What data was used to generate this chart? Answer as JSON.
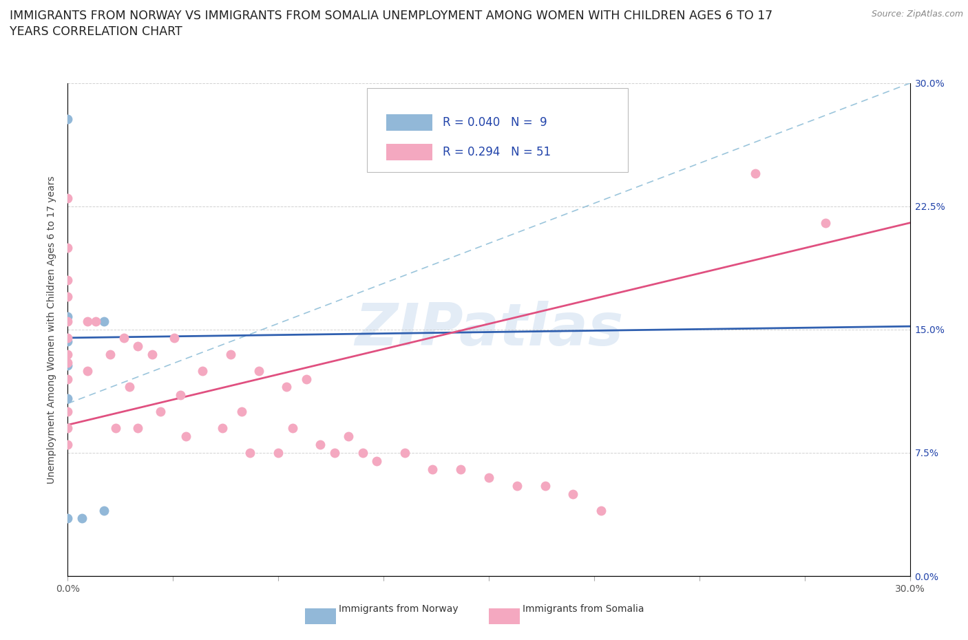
{
  "title_line1": "IMMIGRANTS FROM NORWAY VS IMMIGRANTS FROM SOMALIA UNEMPLOYMENT AMONG WOMEN WITH CHILDREN AGES 6 TO 17",
  "title_line2": "YEARS CORRELATION CHART",
  "source": "Source: ZipAtlas.com",
  "ylabel": "Unemployment Among Women with Children Ages 6 to 17 years",
  "label_norway": "Immigrants from Norway",
  "label_somalia": "Immigrants from Somalia",
  "xlim": [
    0.0,
    0.3
  ],
  "ylim": [
    0.0,
    0.3
  ],
  "yticks": [
    0.0,
    0.075,
    0.15,
    0.225,
    0.3
  ],
  "xticks": [
    0.0,
    0.0375,
    0.075,
    0.1125,
    0.15,
    0.1875,
    0.225,
    0.2625,
    0.3
  ],
  "norway_R": 0.04,
  "norway_N": 9,
  "somalia_R": 0.294,
  "somalia_N": 51,
  "norway_dot_color": "#92b8d8",
  "somalia_dot_color": "#f4a8c0",
  "norway_line_color": "#3060b0",
  "somalia_line_color": "#e05080",
  "diag_line_color": "#90bfd8",
  "watermark": "ZIPatlas",
  "watermark_color": "#ccddf0",
  "bg_color": "#ffffff",
  "right_tick_color": "#2244aa",
  "title_color": "#222222",
  "source_color": "#888888",
  "ylabel_color": "#444444",
  "grid_color": "#cccccc",
  "title_fontsize": 12.5,
  "tick_fontsize": 10,
  "legend_fontsize": 12,
  "ylabel_fontsize": 10,
  "norway_regline": [
    0.0,
    0.3,
    0.145,
    0.152
  ],
  "somalia_regline": [
    0.0,
    0.3,
    0.092,
    0.215
  ],
  "diag_line": [
    0.0,
    0.3,
    0.105,
    0.3
  ],
  "norway_x": [
    0.0,
    0.0,
    0.0,
    0.0,
    0.0,
    0.0,
    0.005,
    0.013,
    0.013
  ],
  "norway_y": [
    0.278,
    0.158,
    0.143,
    0.128,
    0.108,
    0.035,
    0.035,
    0.155,
    0.04
  ],
  "somalia_x": [
    0.0,
    0.0,
    0.0,
    0.0,
    0.0,
    0.0,
    0.0,
    0.0,
    0.0,
    0.0,
    0.0,
    0.0,
    0.007,
    0.007,
    0.01,
    0.015,
    0.017,
    0.02,
    0.022,
    0.025,
    0.025,
    0.03,
    0.033,
    0.038,
    0.04,
    0.042,
    0.048,
    0.055,
    0.058,
    0.062,
    0.065,
    0.068,
    0.075,
    0.078,
    0.08,
    0.085,
    0.09,
    0.095,
    0.1,
    0.105,
    0.11,
    0.12,
    0.13,
    0.14,
    0.15,
    0.16,
    0.17,
    0.18,
    0.19,
    0.245,
    0.27
  ],
  "somalia_y": [
    0.23,
    0.2,
    0.18,
    0.17,
    0.155,
    0.145,
    0.135,
    0.13,
    0.12,
    0.1,
    0.09,
    0.08,
    0.155,
    0.125,
    0.155,
    0.135,
    0.09,
    0.145,
    0.115,
    0.14,
    0.09,
    0.135,
    0.1,
    0.145,
    0.11,
    0.085,
    0.125,
    0.09,
    0.135,
    0.1,
    0.075,
    0.125,
    0.075,
    0.115,
    0.09,
    0.12,
    0.08,
    0.075,
    0.085,
    0.075,
    0.07,
    0.075,
    0.065,
    0.065,
    0.06,
    0.055,
    0.055,
    0.05,
    0.04,
    0.245,
    0.215
  ]
}
